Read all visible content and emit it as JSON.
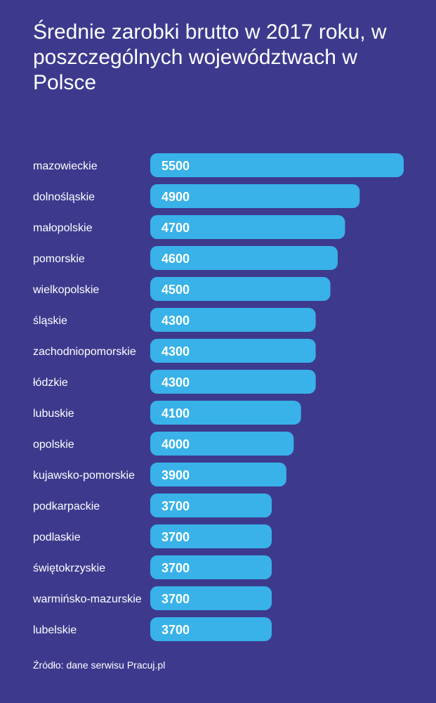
{
  "title": "Średnie zarobki brutto w 2017 roku, w poszczególnych województwach w Polsce",
  "source": "Źródło: dane serwisu Pracuj.pl",
  "colors": {
    "background": "#3d3a8e",
    "bar": "#38b2e8",
    "text": "#ffffff"
  },
  "chart_data": {
    "type": "bar",
    "orientation": "horizontal",
    "title": "Średnie zarobki brutto w 2017 roku, w poszczególnych województwach w Polsce",
    "xlabel": "",
    "ylabel": "",
    "grid": false,
    "legend": "none",
    "xlim": [
      3000,
      5500
    ],
    "categories": [
      "mazowieckie",
      "dolnośląskie",
      "małopolskie",
      "pomorskie",
      "wielkopolskie",
      "śląskie",
      "zachodniopomorskie",
      "łódzkie",
      "lubuskie",
      "opolskie",
      "kujawsko-pomorskie",
      "podkarpackie",
      "podlaskie",
      "świętokrzyskie",
      "warmińsko-mazurskie",
      "lubelskie"
    ],
    "values": [
      5500,
      4900,
      4700,
      4600,
      4500,
      4300,
      4300,
      4300,
      4100,
      4000,
      3900,
      3700,
      3700,
      3700,
      3700,
      3700
    ]
  }
}
